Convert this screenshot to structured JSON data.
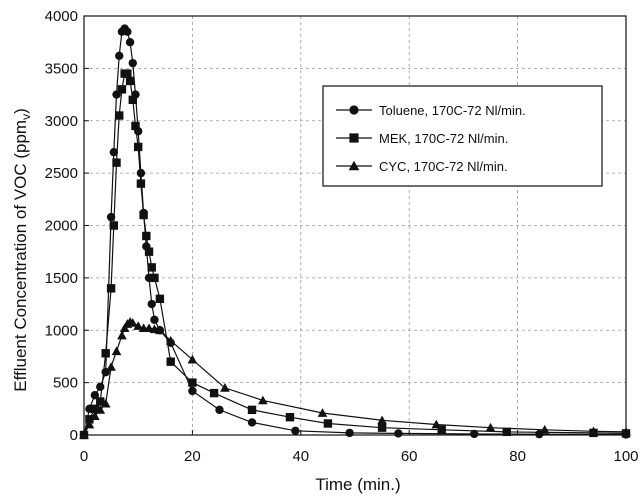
{
  "chart_data": {
    "type": "line",
    "title": "",
    "xlabel": "Time (min.)",
    "ylabel_prefix": "Effluent Concentration of VOC  (ppm",
    "ylabel_sub": "v",
    "ylabel_suffix": ")",
    "xlim": [
      0,
      100
    ],
    "ylim": [
      0,
      4000
    ],
    "xticks": [
      0,
      20,
      40,
      60,
      80,
      100
    ],
    "yticks": [
      0,
      500,
      1000,
      1500,
      2000,
      2500,
      3000,
      3500,
      4000
    ],
    "grid": true,
    "legend_position": "top-right",
    "series": [
      {
        "name": "Toluene, 170C-72 Nl/min.",
        "marker": "circle",
        "x": [
          0,
          1,
          2,
          3,
          4,
          5,
          5.5,
          6,
          6.5,
          7,
          7.5,
          8,
          8.5,
          9,
          9.5,
          10,
          10.5,
          11,
          11.5,
          12,
          12.5,
          13,
          14,
          16,
          20,
          25,
          31,
          39,
          49,
          58,
          72,
          84,
          100
        ],
        "y": [
          0,
          250,
          380,
          460,
          600,
          2080,
          2700,
          3250,
          3620,
          3850,
          3880,
          3850,
          3750,
          3550,
          3250,
          2900,
          2500,
          2120,
          1800,
          1500,
          1250,
          1100,
          1000,
          880,
          420,
          240,
          120,
          40,
          20,
          15,
          10,
          8,
          5
        ]
      },
      {
        "name": "MEK, 170C-72 Nl/min.",
        "marker": "square",
        "x": [
          0,
          1,
          2,
          3,
          4,
          5,
          5.5,
          6,
          6.5,
          7,
          7.5,
          8,
          8.5,
          9,
          9.5,
          10,
          10.5,
          11,
          11.5,
          12,
          12.5,
          13,
          14,
          16,
          20,
          24,
          31,
          38,
          45,
          55,
          66,
          78,
          94,
          100
        ],
        "y": [
          0,
          150,
          250,
          320,
          780,
          1400,
          2000,
          2600,
          3050,
          3300,
          3450,
          3450,
          3380,
          3200,
          2950,
          2750,
          2400,
          2100,
          1900,
          1750,
          1600,
          1500,
          1300,
          700,
          500,
          400,
          240,
          170,
          110,
          70,
          50,
          30,
          20,
          15
        ]
      },
      {
        "name": "CYC, 170C-72 Nl/min.",
        "marker": "triangle",
        "x": [
          0,
          1,
          2,
          3,
          4,
          5,
          6,
          7,
          7.5,
          8,
          8.5,
          9,
          10,
          11,
          12,
          13,
          14,
          16,
          20,
          26,
          33,
          44,
          55,
          65,
          75,
          85,
          94,
          100
        ],
        "y": [
          0,
          100,
          180,
          240,
          300,
          650,
          800,
          950,
          1020,
          1060,
          1080,
          1070,
          1040,
          1020,
          1020,
          1010,
          1000,
          900,
          720,
          450,
          330,
          210,
          140,
          100,
          70,
          50,
          35,
          30
        ]
      }
    ]
  }
}
